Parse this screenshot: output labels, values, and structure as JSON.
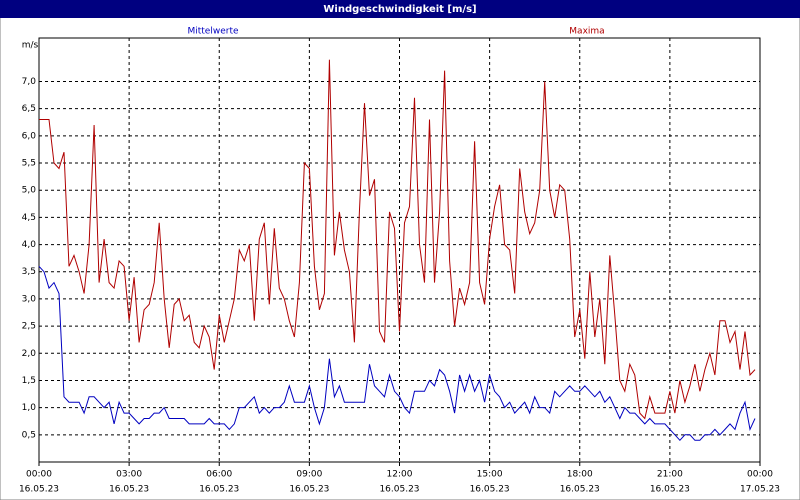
{
  "chart_data": {
    "type": "line",
    "title": "Windgeschwindigkeit [m/s]",
    "y_axis_label": "m/s",
    "x": [
      0,
      10,
      20,
      30,
      40,
      50,
      60,
      70,
      80,
      90,
      100,
      110,
      120,
      130,
      140,
      150,
      160,
      170,
      180,
      190,
      200,
      210,
      220,
      230,
      240,
      250,
      260,
      270,
      280,
      290,
      300,
      310,
      320,
      330,
      340,
      350,
      360,
      370,
      380,
      390,
      400,
      410,
      420,
      430,
      440,
      450,
      460,
      470,
      480,
      490,
      500,
      510,
      520,
      530,
      540,
      550,
      560,
      570,
      580,
      590,
      600,
      610,
      620,
      630,
      640,
      650,
      660,
      670,
      680,
      690,
      700,
      710,
      720,
      730,
      740,
      750,
      760,
      770,
      780,
      790,
      800,
      810,
      820,
      830,
      840,
      850,
      860,
      870,
      880,
      890,
      900,
      910,
      920,
      930,
      940,
      950,
      960,
      970,
      980,
      990,
      1000,
      1010,
      1020,
      1030,
      1040,
      1050,
      1060,
      1070,
      1080,
      1090,
      1100,
      1110,
      1120,
      1130,
      1140,
      1150,
      1160,
      1170,
      1180,
      1190,
      1200,
      1210,
      1220,
      1230,
      1240,
      1250,
      1260,
      1270,
      1280,
      1290,
      1300,
      1310,
      1320,
      1330,
      1340,
      1350,
      1360,
      1370,
      1380,
      1390,
      1400,
      1410,
      1420,
      1430
    ],
    "series": [
      {
        "name": "Mittelwerte",
        "color": "#0000c0",
        "values": [
          3.6,
          3.5,
          3.2,
          3.3,
          3.1,
          1.2,
          1.1,
          1.1,
          1.1,
          0.9,
          1.2,
          1.2,
          1.1,
          1.0,
          1.1,
          0.7,
          1.1,
          0.9,
          0.9,
          0.8,
          0.7,
          0.8,
          0.8,
          0.9,
          0.9,
          1.0,
          0.8,
          0.8,
          0.8,
          0.8,
          0.7,
          0.7,
          0.7,
          0.7,
          0.8,
          0.7,
          0.7,
          0.7,
          0.6,
          0.7,
          1.0,
          1.0,
          1.1,
          1.2,
          0.9,
          1.0,
          0.9,
          1.0,
          1.0,
          1.1,
          1.4,
          1.1,
          1.1,
          1.1,
          1.4,
          1.0,
          0.7,
          1.0,
          1.9,
          1.2,
          1.4,
          1.1,
          1.1,
          1.1,
          1.1,
          1.1,
          1.8,
          1.4,
          1.3,
          1.2,
          1.6,
          1.3,
          1.2,
          1.0,
          0.9,
          1.3,
          1.3,
          1.3,
          1.5,
          1.4,
          1.7,
          1.6,
          1.3,
          0.9,
          1.6,
          1.3,
          1.6,
          1.3,
          1.5,
          1.1,
          1.6,
          1.3,
          1.2,
          1.0,
          1.1,
          0.9,
          1.0,
          1.1,
          0.9,
          1.2,
          1.0,
          1.0,
          0.9,
          1.3,
          1.2,
          1.3,
          1.4,
          1.3,
          1.3,
          1.4,
          1.3,
          1.2,
          1.3,
          1.1,
          1.2,
          1.0,
          0.8,
          1.0,
          0.9,
          0.9,
          0.8,
          0.7,
          0.8,
          0.7,
          0.7,
          0.7,
          0.6,
          0.5,
          0.4,
          0.5,
          0.5,
          0.4,
          0.4,
          0.5,
          0.5,
          0.6,
          0.5,
          0.6,
          0.7,
          0.6,
          0.9,
          1.1,
          0.6,
          0.8
        ]
      },
      {
        "name": "Maxima",
        "color": "#b00000",
        "values": [
          6.3,
          6.3,
          6.3,
          5.5,
          5.4,
          5.7,
          3.6,
          3.8,
          3.5,
          3.1,
          4.0,
          6.2,
          3.3,
          4.1,
          3.3,
          3.2,
          3.7,
          3.6,
          2.6,
          3.4,
          2.2,
          2.8,
          2.9,
          3.3,
          4.4,
          3.0,
          2.1,
          2.9,
          3.0,
          2.6,
          2.7,
          2.2,
          2.1,
          2.5,
          2.3,
          1.7,
          2.7,
          2.2,
          2.6,
          3.0,
          3.9,
          3.7,
          4.0,
          2.6,
          4.1,
          4.4,
          2.9,
          4.3,
          3.2,
          3.0,
          2.6,
          2.3,
          3.3,
          5.5,
          5.4,
          3.6,
          2.8,
          3.1,
          7.4,
          3.8,
          4.6,
          3.9,
          3.5,
          2.2,
          4.6,
          6.6,
          4.9,
          5.2,
          2.4,
          2.2,
          4.6,
          4.3,
          2.4,
          4.4,
          4.7,
          6.7,
          4.0,
          3.3,
          6.3,
          3.3,
          4.6,
          7.2,
          3.7,
          2.5,
          3.2,
          2.9,
          3.3,
          5.9,
          3.3,
          2.9,
          4.1,
          4.7,
          5.1,
          4.0,
          3.9,
          3.1,
          5.4,
          4.6,
          4.2,
          4.4,
          5.0,
          7.0,
          5.0,
          4.5,
          5.1,
          5.0,
          4.1,
          2.3,
          2.8,
          1.9,
          3.5,
          2.3,
          3.0,
          1.8,
          3.8,
          2.7,
          1.5,
          1.3,
          1.8,
          1.6,
          0.9,
          0.8,
          1.2,
          0.9,
          0.9,
          0.9,
          1.3,
          0.9,
          1.5,
          1.1,
          1.4,
          1.8,
          1.3,
          1.7,
          2.0,
          1.6,
          2.6,
          2.6,
          2.2,
          2.4,
          1.7,
          2.4,
          1.6,
          1.7
        ]
      }
    ],
    "xlim": [
      0,
      1440
    ],
    "xticks": [
      {
        "value": 0,
        "label": "00:00"
      },
      {
        "value": 180,
        "label": "03:00"
      },
      {
        "value": 360,
        "label": "06:00"
      },
      {
        "value": 540,
        "label": "09:00"
      },
      {
        "value": 720,
        "label": "12:00"
      },
      {
        "value": 900,
        "label": "15:00"
      },
      {
        "value": 1080,
        "label": "18:00"
      },
      {
        "value": 1260,
        "label": "21:00"
      },
      {
        "value": 1440,
        "label": "00:00"
      }
    ],
    "xtick_dates": [
      "16.05.23",
      "16.05.23",
      "16.05.23",
      "16.05.23",
      "16.05.23",
      "16.05.23",
      "16.05.23",
      "16.05.23",
      "17.05.23"
    ],
    "ylim": [
      0,
      7.8
    ],
    "yticks": [
      {
        "value": 0.5,
        "label": "0,5"
      },
      {
        "value": 1.0,
        "label": "1,0"
      },
      {
        "value": 1.5,
        "label": "1,5"
      },
      {
        "value": 2.0,
        "label": "2,0"
      },
      {
        "value": 2.5,
        "label": "2,5"
      },
      {
        "value": 3.0,
        "label": "3,0"
      },
      {
        "value": 3.5,
        "label": "3,5"
      },
      {
        "value": 4.0,
        "label": "4,0"
      },
      {
        "value": 4.5,
        "label": "4,5"
      },
      {
        "value": 5.0,
        "label": "5,0"
      },
      {
        "value": 5.5,
        "label": "5,5"
      },
      {
        "value": 6.0,
        "label": "6,0"
      },
      {
        "value": 6.5,
        "label": "6,5"
      },
      {
        "value": 7.0,
        "label": "7,0"
      }
    ],
    "grid": true
  }
}
